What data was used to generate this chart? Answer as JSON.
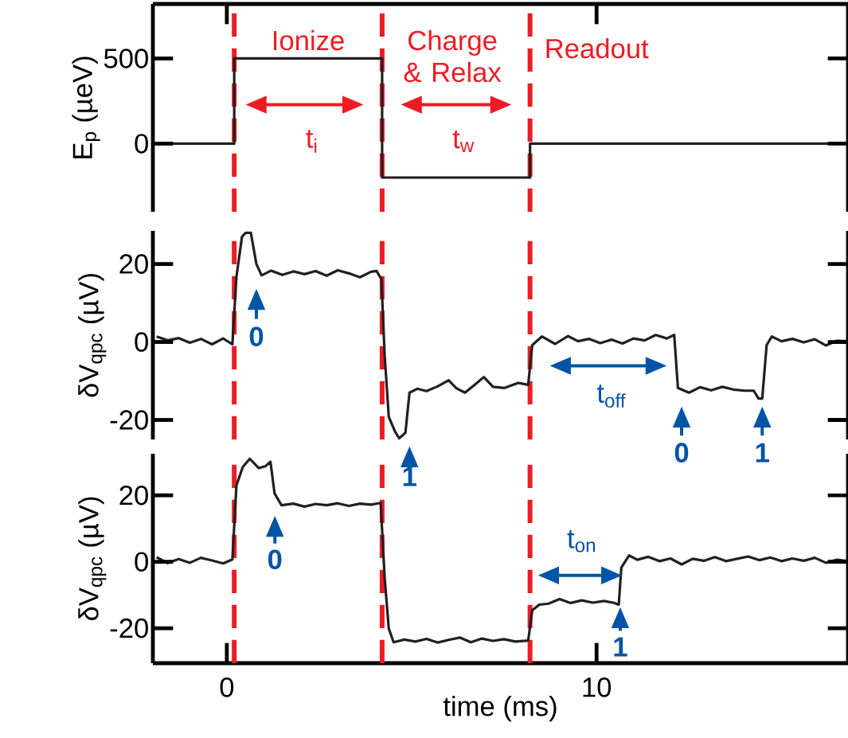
{
  "chart_data": [
    {
      "type": "step",
      "ylabel": "E$_{p}$ (µeV)",
      "xlim": [
        -2,
        16.8
      ],
      "ylim": [
        -400,
        820
      ],
      "yticks": [
        0,
        500
      ],
      "xticks": [
        {
          "value": 0,
          "label": null
        },
        {
          "value": 10,
          "label": null
        }
      ],
      "tick_labels": "y",
      "series": [
        {
          "color": "#231f20",
          "x": [
            -2,
            0.2,
            4.2,
            8.2,
            16.8
          ],
          "values": [
            0,
            500,
            -200,
            0,
            0
          ]
        }
      ],
      "ref_lines": [
        {
          "axis": "x",
          "value": 0.2,
          "color": "#ed1c24",
          "line_style": "dashed"
        },
        {
          "axis": "x",
          "value": 4.2,
          "color": "#ed1c24",
          "line_style": "dashed"
        },
        {
          "axis": "x",
          "value": 8.2,
          "color": "#ed1c24",
          "line_style": "dashed"
        }
      ],
      "annotations": [
        "Ionize",
        "Charge & Relax",
        "Readout",
        "t$_{i}$",
        "t$_{w}$"
      ]
    },
    {
      "type": "line",
      "ylabel": "δV$_{qpc}$ (µV)",
      "xlim": [
        -2,
        16.8
      ],
      "ylim": [
        -25,
        28.5
      ],
      "yticks": [
        -20,
        0,
        20
      ],
      "tick_labels": "y",
      "series": [
        {
          "color": "#231f20",
          "x": [
            -1.9,
            -1.6,
            -1.3,
            -1.0,
            -0.7,
            -0.4,
            -0.1,
            0.15,
            0.26,
            0.41,
            0.51,
            0.65,
            0.8,
            0.94,
            1.2,
            1.5,
            1.8,
            2.1,
            2.4,
            2.7,
            3.0,
            3.3,
            3.6,
            3.9,
            4.05,
            4.18,
            4.27,
            4.38,
            4.55,
            4.66,
            4.83,
            4.94,
            5.15,
            5.4,
            5.7,
            6.0,
            6.2,
            6.44,
            6.7,
            6.95,
            7.2,
            7.51,
            7.88,
            8.15,
            8.26,
            8.52,
            8.88,
            9.23,
            9.5,
            9.8,
            10.1,
            10.4,
            10.7,
            11.0,
            11.3,
            11.6,
            11.9,
            12.1,
            12.2,
            12.5,
            12.8,
            13.1,
            13.4,
            13.7,
            14.0,
            14.25,
            14.38,
            14.48,
            14.6,
            14.74,
            15.0,
            15.3,
            15.6,
            15.9,
            16.2,
            16.5,
            16.8
          ],
          "values": [
            1.4,
            0.4,
            1.0,
            -0.2,
            0.8,
            -0.6,
            0.9,
            -0.6,
            16.7,
            27,
            28,
            28,
            20,
            17.1,
            18.3,
            17.2,
            18.1,
            17.4,
            18.2,
            17.0,
            18.4,
            17.6,
            16.6,
            18.0,
            18.2,
            16.1,
            -3.7,
            -19.2,
            -23,
            -24.7,
            -23.3,
            -13,
            -12,
            -12.6,
            -11.4,
            -9.8,
            -11.8,
            -13,
            -11,
            -9,
            -11.5,
            -11.8,
            -10.5,
            -11,
            -0.8,
            1.4,
            -0.5,
            1.5,
            0.2,
            0.8,
            -0.3,
            0.6,
            -0.4,
            0.9,
            0.4,
            1.8,
            0.9,
            1.8,
            -11.8,
            -13,
            -11.6,
            -12.4,
            -11.5,
            -12.2,
            -12.5,
            -12.5,
            -14.5,
            -14.5,
            -0.8,
            1.4,
            0.2,
            0.8,
            -0.1,
            0.7,
            -0.9,
            0.3,
            0.2
          ]
        }
      ],
      "ref_lines": [
        {
          "axis": "x",
          "value": 0.2,
          "color": "#ed1c24",
          "line_style": "dashed"
        },
        {
          "axis": "x",
          "value": 4.2,
          "color": "#ed1c24",
          "line_style": "dashed"
        },
        {
          "axis": "x",
          "value": 8.2,
          "color": "#ed1c24",
          "line_style": "dashed"
        }
      ],
      "annotations": [
        "0",
        "1",
        "t$_{off}$",
        "0",
        "1"
      ]
    },
    {
      "type": "line",
      "ylabel": "δV$_{qpc}$ (µV)",
      "xlabel": "time (ms)",
      "xlim": [
        -2,
        16.8
      ],
      "ylim": [
        -30.5,
        32.5
      ],
      "yticks": [
        -20,
        0,
        20
      ],
      "xticks": [
        0,
        10
      ],
      "series": [
        {
          "color": "#231f20",
          "x": [
            -1.9,
            -1.6,
            -1.3,
            -1.0,
            -0.7,
            -0.4,
            -0.1,
            0.15,
            0.26,
            0.43,
            0.62,
            0.86,
            1.05,
            1.18,
            1.29,
            1.48,
            1.8,
            2.1,
            2.4,
            2.7,
            3.0,
            3.3,
            3.6,
            3.9,
            4.16,
            4.27,
            4.38,
            4.51,
            4.8,
            5.1,
            5.4,
            5.7,
            6.0,
            6.3,
            6.6,
            6.9,
            7.2,
            7.5,
            7.8,
            8.15,
            8.26,
            8.45,
            8.7,
            9.0,
            9.3,
            9.6,
            9.9,
            10.2,
            10.45,
            10.6,
            10.67,
            10.88,
            11.1,
            11.4,
            11.7,
            12.0,
            12.3,
            12.6,
            12.9,
            13.2,
            13.5,
            13.8,
            14.1,
            14.4,
            14.7,
            15.0,
            15.3,
            15.6,
            15.9,
            16.2,
            16.5,
            16.8
          ],
          "values": [
            1.4,
            -0.4,
            0.8,
            -0.3,
            1.2,
            0.4,
            -0.5,
            0.7,
            23,
            28.5,
            31,
            28.2,
            28.8,
            30.1,
            20.6,
            17,
            17.5,
            16.6,
            17.4,
            17.0,
            17.6,
            16.8,
            17.5,
            17.2,
            17.7,
            -5,
            -20.1,
            -24.2,
            -23.4,
            -24.0,
            -23.2,
            -24.3,
            -23.5,
            -22.8,
            -24.2,
            -23.1,
            -23.8,
            -23.3,
            -24.0,
            -23.7,
            -14.6,
            -12.9,
            -12.6,
            -11.2,
            -12.4,
            -11.6,
            -12.3,
            -11.8,
            -12.3,
            -12.9,
            -1.7,
            1.9,
            0.6,
            1.5,
            0.2,
            1.0,
            -0.8,
            0.9,
            0.3,
            1.4,
            0.2,
            0.9,
            1.6,
            0.5,
            1.3,
            0.2,
            1.0,
            0.3,
            1.2,
            -0.3,
            0.6,
            0.2
          ]
        }
      ],
      "ref_lines": [
        {
          "axis": "x",
          "value": 0.2,
          "color": "#ed1c24",
          "line_style": "dashed"
        },
        {
          "axis": "x",
          "value": 4.2,
          "color": "#ed1c24",
          "line_style": "dashed"
        },
        {
          "axis": "x",
          "value": 8.2,
          "color": "#ed1c24",
          "line_style": "dashed"
        }
      ],
      "annotations": [
        "0",
        "t$_{on}$",
        "1"
      ]
    }
  ]
}
